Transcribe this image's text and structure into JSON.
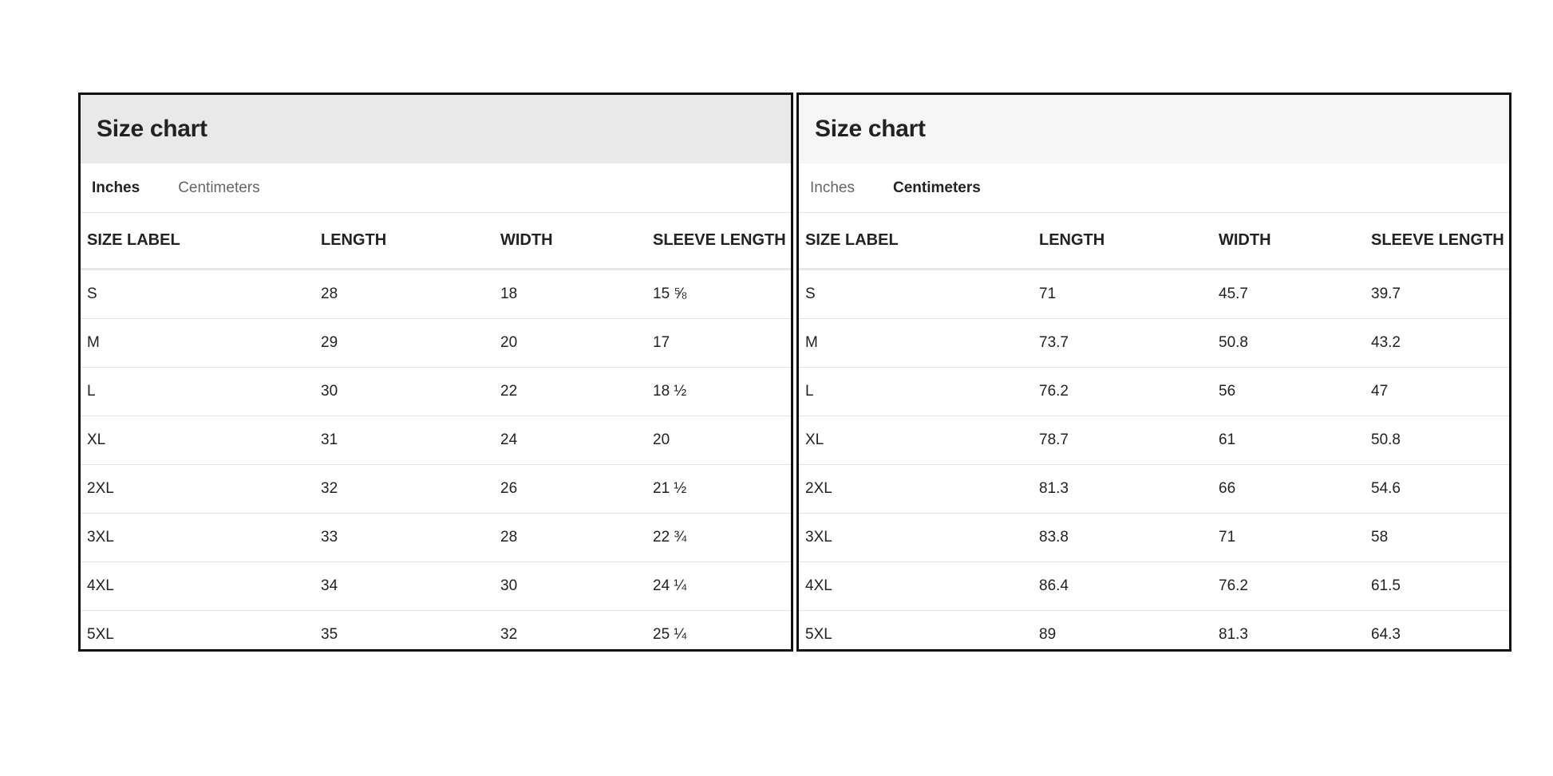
{
  "panels": [
    {
      "title": "Size chart",
      "tabs": [
        {
          "label": "Inches",
          "active": true
        },
        {
          "label": "Centimeters",
          "active": false
        }
      ],
      "headers": [
        "SIZE LABEL",
        "LENGTH",
        "WIDTH",
        "SLEEVE LENGTH"
      ],
      "rows": [
        [
          "S",
          "28",
          "18",
          "15 ⅝"
        ],
        [
          "M",
          "29",
          "20",
          "17"
        ],
        [
          "L",
          "30",
          "22",
          "18 ½"
        ],
        [
          "XL",
          "31",
          "24",
          "20"
        ],
        [
          "2XL",
          "32",
          "26",
          "21 ½"
        ],
        [
          "3XL",
          "33",
          "28",
          "22 ¾"
        ],
        [
          "4XL",
          "34",
          "30",
          "24 ¼"
        ],
        [
          "5XL",
          "35",
          "32",
          "25 ¼"
        ]
      ]
    },
    {
      "title": "Size chart",
      "tabs": [
        {
          "label": "Inches",
          "active": false
        },
        {
          "label": "Centimeters",
          "active": true
        }
      ],
      "headers": [
        "SIZE LABEL",
        "LENGTH",
        "WIDTH",
        "SLEEVE LENGTH"
      ],
      "rows": [
        [
          "S",
          "71",
          "45.7",
          "39.7"
        ],
        [
          "M",
          "73.7",
          "50.8",
          "43.2"
        ],
        [
          "L",
          "76.2",
          "56",
          "47"
        ],
        [
          "XL",
          "78.7",
          "61",
          "50.8"
        ],
        [
          "2XL",
          "81.3",
          "66",
          "54.6"
        ],
        [
          "3XL",
          "83.8",
          "71",
          "58"
        ],
        [
          "4XL",
          "86.4",
          "76.2",
          "61.5"
        ],
        [
          "5XL",
          "89",
          "81.3",
          "64.3"
        ]
      ]
    }
  ]
}
